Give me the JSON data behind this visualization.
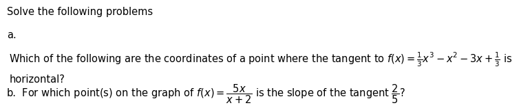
{
  "title": "Solve the following problems",
  "label_a": "a.",
  "label_b": "b.",
  "line_a1": "Which of the following are the coordinates of a point where the tangent to $f(x) = \\frac{1}{3}x^3 - x^2 - 3x + \\frac{1}{3}$ is",
  "line_a2": "horizontal?",
  "line_b": "    For which point(s) on the graph of $f(x) = \\dfrac{5x}{x+2}$ is the slope of the tangent $\\dfrac{2}{5}$?",
  "bg_color": "#ffffff",
  "text_color": "#000000",
  "font_size": 10.5
}
